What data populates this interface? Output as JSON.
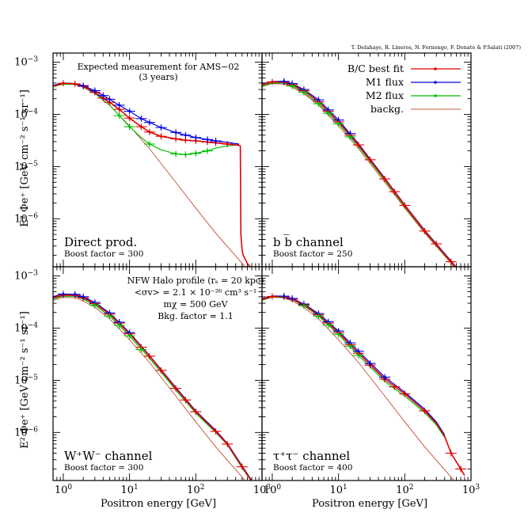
{
  "credit": "T. Delahaye, R. Lineros, N. Fornengo, F. Donato & P.Salati (2007)",
  "ylabel": "E² Φe⁺ [GeV cm⁻² s⁻¹ sr⁻¹]",
  "xlabel": "Positron energy [GeV]",
  "colors": {
    "bc": "#e00000",
    "m1": "#0000e0",
    "m2": "#00c000",
    "bkg": "#b02000"
  },
  "legend": [
    "B/C best fit",
    "M1 flux",
    "M2 flux",
    "backg."
  ],
  "annotations_direct": [
    "Expected measurement for AMS−02",
    "(3 years)"
  ],
  "annotations_ww": [
    "NFW Halo profile (rₛ = 20 kpc)",
    "<σv> = 2.1 × 10⁻²⁶ cm³ s⁻¹",
    "mχ = 500 GeV",
    "Bkg. factor = 1.1"
  ],
  "chart_data": [
    {
      "type": "line",
      "panel": "top-left",
      "channel": "Direct prod.",
      "boost": "Boost factor = 300",
      "xscale": "log",
      "yscale": "log",
      "xlim": [
        0.7,
        1000
      ],
      "ylim": [
        1.2e-07,
        0.0015
      ],
      "series": [
        {
          "name": "backg.",
          "x": [
            0.7,
            1,
            1.5,
            2,
            3,
            5,
            10,
            20,
            50,
            100,
            200,
            500,
            800
          ],
          "y": [
            0.00034,
            0.00039,
            0.00038,
            0.00033,
            0.00025,
            0.00015,
            6e-05,
            2.2e-05,
            5e-06,
            1.6e-06,
            5.3e-07,
            1.4e-07,
            7e-08
          ]
        },
        {
          "name": "B/C best fit",
          "x": [
            0.7,
            1,
            1.5,
            2,
            3,
            4,
            5,
            7,
            10,
            15,
            20,
            30,
            50,
            70,
            100,
            150,
            200,
            300,
            450,
            470,
            480,
            500,
            520,
            600,
            700,
            800
          ],
          "y": [
            0.00035,
            0.000395,
            0.000385,
            0.000345,
            0.000265,
            0.000205,
            0.00017,
            0.000125,
            8.5e-05,
            5.8e-05,
            4.6e-05,
            3.8e-05,
            3.4e-05,
            3.2e-05,
            3.1e-05,
            2.95e-05,
            2.85e-05,
            2.7e-05,
            2.55e-05,
            2.5e-05,
            5e-07,
            2.5e-07,
            2e-07,
            1.4e-07,
            1.1e-07,
            9e-08
          ]
        },
        {
          "name": "M1 flux",
          "x": [
            0.7,
            1,
            1.5,
            2,
            3,
            5,
            7,
            10,
            15,
            20,
            30,
            50,
            70,
            100,
            150,
            200,
            300,
            450
          ],
          "y": [
            0.00036,
            0.0004,
            0.00039,
            0.000355,
            0.000285,
            0.000195,
            0.00015,
            0.000115,
            8.3e-05,
            7e-05,
            5.6e-05,
            4.5e-05,
            4e-05,
            3.6e-05,
            3.3e-05,
            3.1e-05,
            2.9e-05,
            2.7e-05
          ]
        },
        {
          "name": "M2 flux",
          "x": [
            0.7,
            1,
            1.5,
            2,
            3,
            5,
            7,
            10,
            15,
            20,
            30,
            50,
            70,
            100,
            150,
            200,
            300,
            450
          ],
          "y": [
            0.00034,
            0.00038,
            0.000375,
            0.000335,
            0.000255,
            0.00015,
            9.5e-05,
            5.8e-05,
            3.6e-05,
            2.7e-05,
            2.1e-05,
            1.75e-05,
            1.7e-05,
            1.8e-05,
            2e-05,
            2.25e-05,
            2.5e-05,
            2.6e-05
          ]
        }
      ],
      "data_points": [
        {
          "series": "B/C best fit",
          "x": [
            1,
            1.5,
            2,
            3,
            4,
            5,
            7,
            10,
            15,
            20,
            30,
            50,
            70,
            100,
            150,
            200,
            300,
            700
          ],
          "y": [
            0.000395,
            0.000385,
            0.000345,
            0.000265,
            0.000205,
            0.00017,
            0.000125,
            8.5e-05,
            5.8e-05,
            4.6e-05,
            3.8e-05,
            3.4e-05,
            3.2e-05,
            3.1e-05,
            2.95e-05,
            2.85e-05,
            2.7e-05,
            1.1e-07
          ]
        },
        {
          "series": "M1 flux",
          "x": [
            2,
            3,
            4,
            5,
            7,
            10,
            15,
            20,
            30,
            50,
            70,
            100,
            150,
            200
          ],
          "y": [
            0.000355,
            0.000285,
            0.00023,
            0.000195,
            0.00015,
            0.000115,
            8.3e-05,
            7e-05,
            5.6e-05,
            4.5e-05,
            4e-05,
            3.6e-05,
            3.3e-05,
            3.1e-05
          ]
        },
        {
          "series": "M2 flux",
          "x": [
            7,
            10,
            20,
            50,
            70,
            100,
            150
          ],
          "y": [
            9.5e-05,
            5.8e-05,
            2.7e-05,
            1.75e-05,
            1.7e-05,
            1.8e-05,
            2e-05
          ]
        }
      ]
    },
    {
      "type": "line",
      "panel": "top-right",
      "channel": "b b̅ channel",
      "boost": "Boost factor = 250",
      "xscale": "log",
      "yscale": "log",
      "xlim": [
        0.7,
        1000
      ],
      "ylim": [
        1.2e-07,
        0.0015
      ],
      "series": [
        {
          "name": "backg.",
          "x": [
            0.7,
            1,
            1.5,
            2,
            3,
            5,
            10,
            20,
            50,
            100,
            200,
            500,
            800
          ],
          "y": [
            0.00034,
            0.00039,
            0.00038,
            0.00033,
            0.00025,
            0.00015,
            6e-05,
            2.2e-05,
            5e-06,
            1.6e-06,
            5.3e-07,
            1.4e-07,
            7e-08
          ]
        },
        {
          "name": "B/C best fit",
          "x": [
            0.7,
            1,
            1.5,
            2,
            3,
            5,
            10,
            20,
            50,
            100,
            200,
            500,
            800
          ],
          "y": [
            0.00037,
            0.00042,
            0.000415,
            0.00037,
            0.000285,
            0.000175,
            7.2e-05,
            2.6e-05,
            5.8e-06,
            1.8e-06,
            5.8e-07,
            1.5e-07,
            7.5e-08
          ]
        },
        {
          "name": "M1 flux",
          "x": [
            0.7,
            1,
            1.5,
            2,
            3,
            5,
            10,
            20,
            50,
            100,
            200,
            500,
            800
          ],
          "y": [
            0.00038,
            0.00043,
            0.00043,
            0.00039,
            0.0003,
            0.00019,
            7.8e-05,
            2.75e-05,
            6e-06,
            1.85e-06,
            6e-07,
            1.55e-07,
            7.7e-08
          ]
        },
        {
          "name": "M2 flux",
          "x": [
            0.7,
            1,
            1.5,
            2,
            3,
            5,
            10,
            20,
            50,
            100,
            200,
            500,
            800
          ],
          "y": [
            0.00035,
            0.0004,
            0.000395,
            0.00035,
            0.000265,
            0.00016,
            6.6e-05,
            2.4e-05,
            5.4e-06,
            1.7e-06,
            5.6e-07,
            1.45e-07,
            7.3e-08
          ]
        }
      ],
      "data_points": [
        {
          "series": "B/C best fit",
          "x": [
            1,
            1.5,
            2,
            3,
            5,
            7,
            10,
            15,
            20,
            30,
            50,
            70,
            100,
            200,
            300,
            500
          ],
          "y": [
            0.00042,
            0.000415,
            0.00037,
            0.000285,
            0.000175,
            0.000115,
            7.2e-05,
            4e-05,
            2.6e-05,
            1.35e-05,
            5.8e-06,
            3.3e-06,
            1.8e-06,
            5.8e-07,
            3.3e-07,
            1.5e-07
          ]
        },
        {
          "series": "M1 flux",
          "x": [
            1.5,
            2,
            3,
            5,
            7,
            10,
            15
          ],
          "y": [
            0.00043,
            0.00039,
            0.0003,
            0.00019,
            0.000122,
            7.8e-05,
            4.3e-05
          ]
        },
        {
          "series": "M2 flux",
          "x": [
            2,
            3,
            5,
            7,
            10,
            15
          ],
          "y": [
            0.00035,
            0.000265,
            0.00016,
            0.000105,
            6.6e-05,
            3.7e-05
          ]
        }
      ]
    },
    {
      "type": "line",
      "panel": "bottom-left",
      "channel": "W⁺W⁻ channel",
      "boost": "Boost factor = 300",
      "xscale": "log",
      "yscale": "log",
      "xlim": [
        0.7,
        1000
      ],
      "ylim": [
        1.2e-07,
        0.0015
      ],
      "series": [
        {
          "name": "backg.",
          "x": [
            0.7,
            1,
            1.5,
            2,
            3,
            5,
            10,
            20,
            50,
            100,
            200,
            500,
            800
          ],
          "y": [
            0.00034,
            0.00039,
            0.00038,
            0.00033,
            0.00025,
            0.00015,
            6e-05,
            2.2e-05,
            5e-06,
            1.6e-06,
            5.3e-07,
            1.4e-07,
            7e-08
          ]
        },
        {
          "name": "B/C best fit",
          "x": [
            0.7,
            1,
            1.5,
            2,
            3,
            5,
            10,
            20,
            50,
            100,
            200,
            300,
            500,
            800
          ],
          "y": [
            0.00038,
            0.00043,
            0.000425,
            0.00038,
            0.000295,
            0.000185,
            7.8e-05,
            2.9e-05,
            7e-06,
            2.5e-06,
            1.05e-06,
            6e-07,
            2.2e-07,
            9e-08
          ]
        },
        {
          "name": "M1 flux",
          "x": [
            0.7,
            1,
            1.5,
            2,
            3,
            5,
            10,
            20,
            50,
            100,
            200,
            300,
            500,
            800
          ],
          "y": [
            0.0004,
            0.00045,
            0.000445,
            0.0004,
            0.00031,
            0.000195,
            8.2e-05,
            3e-05,
            7.3e-06,
            2.6e-06,
            1.1e-06,
            6.2e-07,
            2.3e-07,
            9.2e-08
          ]
        },
        {
          "name": "M2 flux",
          "x": [
            0.7,
            1,
            1.5,
            2,
            3,
            5,
            10,
            20,
            50,
            100,
            200,
            300,
            500,
            800
          ],
          "y": [
            0.00036,
            0.00041,
            0.000405,
            0.00036,
            0.000275,
            0.00017,
            7.1e-05,
            2.65e-05,
            6.5e-06,
            2.35e-06,
            1e-06,
            5.8e-07,
            2.1e-07,
            8.8e-08
          ]
        }
      ],
      "data_points": [
        {
          "series": "B/C best fit",
          "x": [
            1,
            1.5,
            2,
            3,
            5,
            7,
            10,
            15,
            20,
            30,
            50,
            70,
            100,
            200,
            300,
            500
          ],
          "y": [
            0.00043,
            0.000425,
            0.00038,
            0.000295,
            0.000185,
            0.000125,
            7.8e-05,
            4.3e-05,
            2.9e-05,
            1.55e-05,
            7e-06,
            4.2e-06,
            2.5e-06,
            1.05e-06,
            6e-07,
            2.2e-07
          ]
        },
        {
          "series": "M1 flux",
          "x": [
            1,
            1.5,
            2,
            3,
            5,
            7,
            10
          ],
          "y": [
            0.00045,
            0.000445,
            0.0004,
            0.00031,
            0.000195,
            0.00013,
            8.2e-05
          ]
        },
        {
          "series": "M2 flux",
          "x": [
            3,
            5,
            7,
            10,
            15
          ],
          "y": [
            0.000275,
            0.00017,
            0.000113,
            7.1e-05,
            3.9e-05
          ]
        }
      ]
    },
    {
      "type": "line",
      "panel": "bottom-right",
      "channel": "τ⁺τ⁻ channel",
      "boost": "Boost factor = 400",
      "xscale": "log",
      "yscale": "log",
      "xlim": [
        0.7,
        1000
      ],
      "ylim": [
        1.2e-07,
        0.0015
      ],
      "series": [
        {
          "name": "backg.",
          "x": [
            0.7,
            1,
            1.5,
            2,
            3,
            5,
            10,
            20,
            50,
            100,
            200,
            500,
            800
          ],
          "y": [
            0.00034,
            0.00039,
            0.00038,
            0.00033,
            0.00025,
            0.00015,
            6e-05,
            2.2e-05,
            5e-06,
            1.6e-06,
            5.3e-07,
            1.4e-07,
            7e-08
          ]
        },
        {
          "name": "B/C best fit",
          "x": [
            0.7,
            1,
            1.5,
            2,
            3,
            5,
            10,
            20,
            50,
            100,
            200,
            300,
            400,
            500,
            700,
            800
          ],
          "y": [
            0.00036,
            0.000405,
            0.0004,
            0.00036,
            0.00028,
            0.00018,
            8.2e-05,
            3.3e-05,
            1.05e-05,
            5.5e-06,
            2.6e-06,
            1.5e-06,
            8.5e-07,
            4e-07,
            2e-07,
            1.5e-07
          ]
        },
        {
          "name": "M1 flux",
          "x": [
            0.7,
            1,
            1.5,
            2,
            3,
            5,
            10,
            20,
            50,
            100,
            200,
            300,
            400
          ],
          "y": [
            0.00037,
            0.000415,
            0.00041,
            0.00037,
            0.00029,
            0.00019,
            8.8e-05,
            3.6e-05,
            1.15e-05,
            5.9e-06,
            2.8e-06,
            1.6e-06,
            9e-07
          ]
        },
        {
          "name": "M2 flux",
          "x": [
            0.7,
            1,
            1.5,
            2,
            3,
            5,
            10,
            20,
            50,
            100,
            200,
            300,
            400
          ],
          "y": [
            0.00035,
            0.000395,
            0.00039,
            0.00035,
            0.00027,
            0.00017,
            7.6e-05,
            3e-05,
            9.5e-06,
            5e-06,
            2.4e-06,
            1.4e-06,
            8e-07
          ]
        }
      ],
      "data_points": [
        {
          "series": "B/C best fit",
          "x": [
            1,
            1.5,
            2,
            3,
            5,
            7,
            10,
            15,
            20,
            30,
            50,
            70,
            100,
            200,
            500,
            700
          ],
          "y": [
            0.000405,
            0.0004,
            0.00036,
            0.00028,
            0.00018,
            0.000125,
            8.2e-05,
            4.8e-05,
            3.3e-05,
            1.95e-05,
            1.05e-05,
            7.5e-06,
            5.5e-06,
            2.6e-06,
            4e-07,
            2e-07
          ]
        },
        {
          "series": "M1 flux",
          "x": [
            1.5,
            2,
            3,
            5,
            7,
            10,
            15,
            20,
            30,
            50
          ],
          "y": [
            0.00041,
            0.00037,
            0.00029,
            0.00019,
            0.000132,
            8.8e-05,
            5.2e-05,
            3.6e-05,
            2.1e-05,
            1.15e-05
          ]
        },
        {
          "series": "M2 flux",
          "x": [
            3,
            5,
            7,
            10,
            15,
            20
          ],
          "y": [
            0.00027,
            0.00017,
            0.000115,
            7.6e-05,
            4.5e-05,
            3e-05
          ]
        }
      ]
    }
  ]
}
